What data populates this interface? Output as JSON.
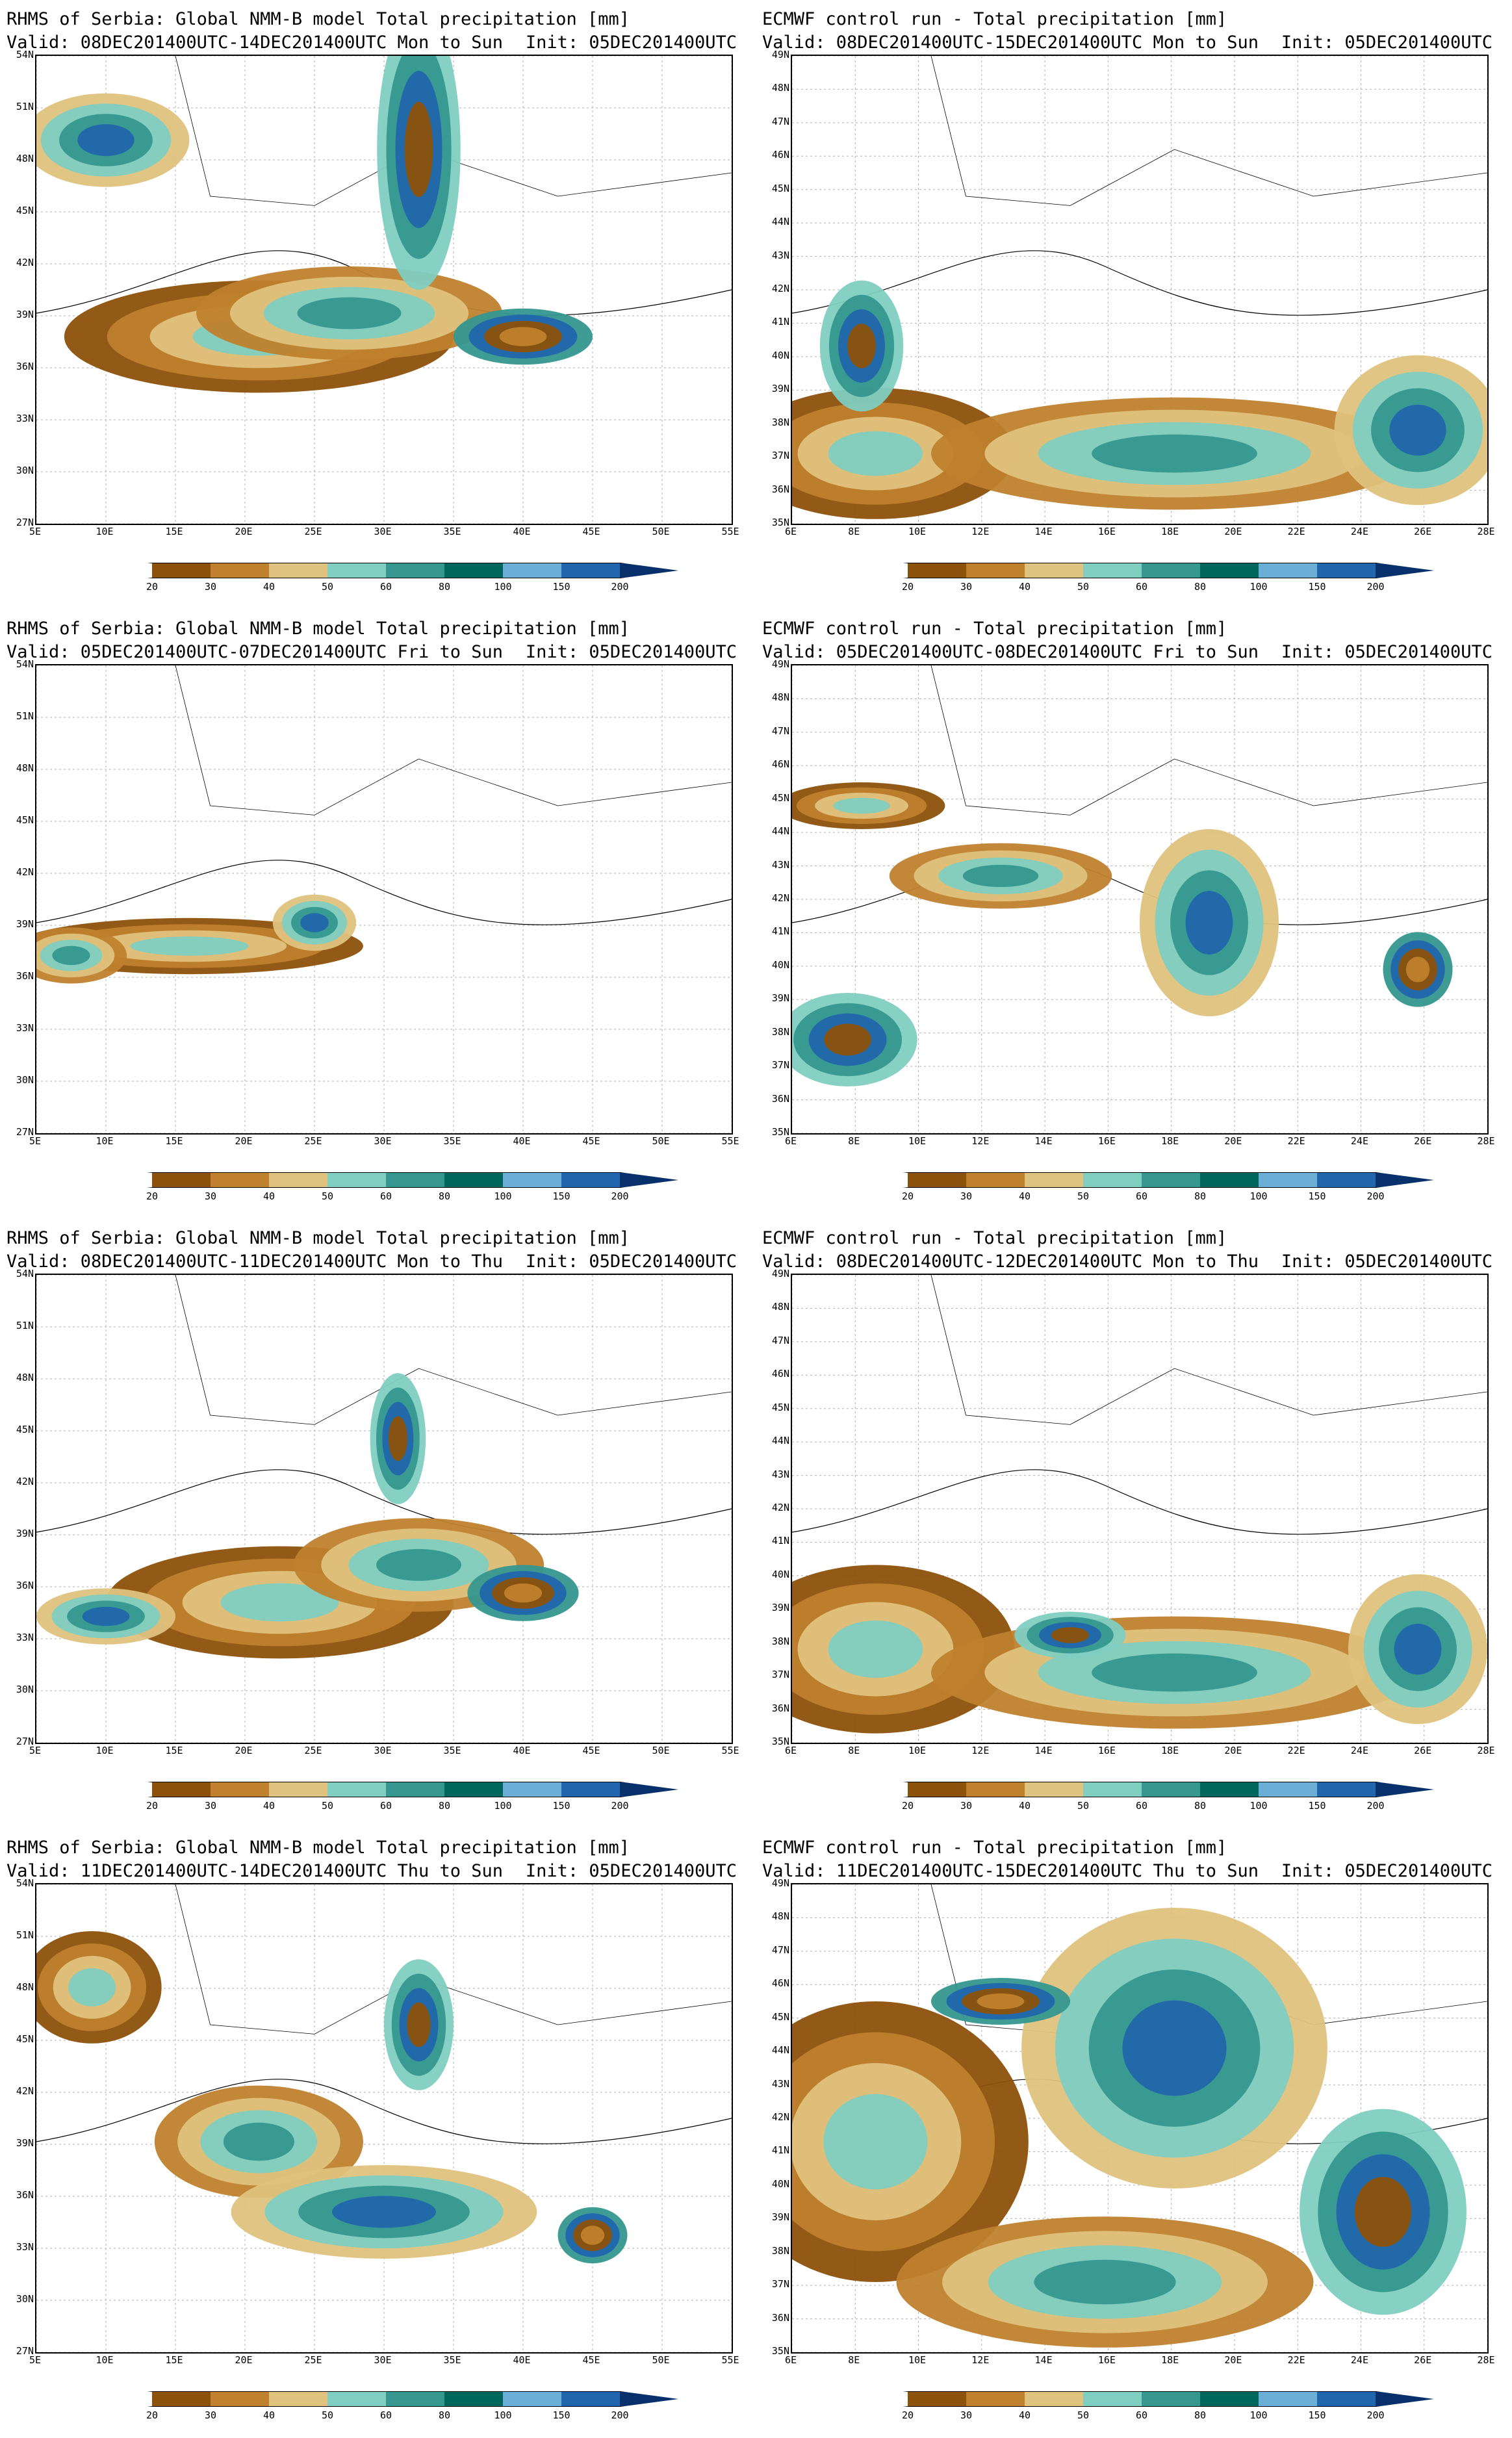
{
  "panels": [
    {
      "title": "RHMS of Serbia: Global NMM-B model Total precipitation [mm]",
      "valid": "Valid: 08DEC201400UTC-14DEC201400UTC Mon to Sun",
      "init": "Init: 05DEC201400UTC",
      "y_ticks": [
        "54N",
        "51N",
        "48N",
        "45N",
        "42N",
        "39N",
        "36N",
        "33N",
        "30N",
        "27N"
      ],
      "x_ticks": [
        "5E",
        "10E",
        "15E",
        "20E",
        "25E",
        "30E",
        "35E",
        "40E",
        "45E",
        "50E",
        "55E"
      ]
    },
    {
      "title": "ECMWF control run - Total precipitation [mm]",
      "valid": "Valid: 08DEC201400UTC-15DEC201400UTC Mon to Sun",
      "init": "Init: 05DEC201400UTC",
      "y_ticks": [
        "49N",
        "48N",
        "47N",
        "46N",
        "45N",
        "44N",
        "43N",
        "42N",
        "41N",
        "40N",
        "39N",
        "38N",
        "37N",
        "36N",
        "35N"
      ],
      "x_ticks": [
        "6E",
        "8E",
        "10E",
        "12E",
        "14E",
        "16E",
        "18E",
        "20E",
        "22E",
        "24E",
        "26E",
        "28E"
      ]
    },
    {
      "title": "RHMS of Serbia: Global NMM-B model Total precipitation [mm]",
      "valid": "Valid: 05DEC201400UTC-07DEC201400UTC Fri to Sun",
      "init": "Init: 05DEC201400UTC",
      "y_ticks": [
        "54N",
        "51N",
        "48N",
        "45N",
        "42N",
        "39N",
        "36N",
        "33N",
        "30N",
        "27N"
      ],
      "x_ticks": [
        "5E",
        "10E",
        "15E",
        "20E",
        "25E",
        "30E",
        "35E",
        "40E",
        "45E",
        "50E",
        "55E"
      ]
    },
    {
      "title": "ECMWF control run - Total precipitation [mm]",
      "valid": "Valid: 05DEC201400UTC-08DEC201400UTC Fri to Sun",
      "init": "Init: 05DEC201400UTC",
      "y_ticks": [
        "49N",
        "48N",
        "47N",
        "46N",
        "45N",
        "44N",
        "43N",
        "42N",
        "41N",
        "40N",
        "39N",
        "38N",
        "37N",
        "36N",
        "35N"
      ],
      "x_ticks": [
        "6E",
        "8E",
        "10E",
        "12E",
        "14E",
        "16E",
        "18E",
        "20E",
        "22E",
        "24E",
        "26E",
        "28E"
      ]
    },
    {
      "title": "RHMS of Serbia: Global NMM-B model Total precipitation [mm]",
      "valid": "Valid: 08DEC201400UTC-11DEC201400UTC Mon to Thu",
      "init": "Init: 05DEC201400UTC",
      "y_ticks": [
        "54N",
        "51N",
        "48N",
        "45N",
        "42N",
        "39N",
        "36N",
        "33N",
        "30N",
        "27N"
      ],
      "x_ticks": [
        "5E",
        "10E",
        "15E",
        "20E",
        "25E",
        "30E",
        "35E",
        "40E",
        "45E",
        "50E",
        "55E"
      ]
    },
    {
      "title": "ECMWF control run - Total precipitation [mm]",
      "valid": "Valid: 08DEC201400UTC-12DEC201400UTC Mon to Thu",
      "init": "Init: 05DEC201400UTC",
      "y_ticks": [
        "49N",
        "48N",
        "47N",
        "46N",
        "45N",
        "44N",
        "43N",
        "42N",
        "41N",
        "40N",
        "39N",
        "38N",
        "37N",
        "36N",
        "35N"
      ],
      "x_ticks": [
        "6E",
        "8E",
        "10E",
        "12E",
        "14E",
        "16E",
        "18E",
        "20E",
        "22E",
        "24E",
        "26E",
        "28E"
      ]
    },
    {
      "title": "RHMS of Serbia: Global NMM-B model Total precipitation [mm]",
      "valid": "Valid: 11DEC201400UTC-14DEC201400UTC Thu to Sun",
      "init": "Init: 05DEC201400UTC",
      "y_ticks": [
        "54N",
        "51N",
        "48N",
        "45N",
        "42N",
        "39N",
        "36N",
        "33N",
        "30N",
        "27N"
      ],
      "x_ticks": [
        "5E",
        "10E",
        "15E",
        "20E",
        "25E",
        "30E",
        "35E",
        "40E",
        "45E",
        "50E",
        "55E"
      ]
    },
    {
      "title": "ECMWF control run - Total precipitation [mm]",
      "valid": "Valid: 11DEC201400UTC-15DEC201400UTC Thu to Sun",
      "init": "Init: 05DEC201400UTC",
      "y_ticks": [
        "49N",
        "48N",
        "47N",
        "46N",
        "45N",
        "44N",
        "43N",
        "42N",
        "41N",
        "40N",
        "39N",
        "38N",
        "37N",
        "36N",
        "35N"
      ],
      "x_ticks": [
        "6E",
        "8E",
        "10E",
        "12E",
        "14E",
        "16E",
        "18E",
        "20E",
        "22E",
        "24E",
        "26E",
        "28E"
      ]
    }
  ],
  "colorbar": {
    "labels": [
      "20",
      "30",
      "40",
      "50",
      "60",
      "80",
      "100",
      "150",
      "200"
    ],
    "colors": [
      "#ffffff",
      "#8c510a",
      "#bf812d",
      "#dfc27d",
      "#80cdc1",
      "#35978f",
      "#01665e",
      "#6baed6",
      "#2166ac",
      "#08306b"
    ]
  }
}
